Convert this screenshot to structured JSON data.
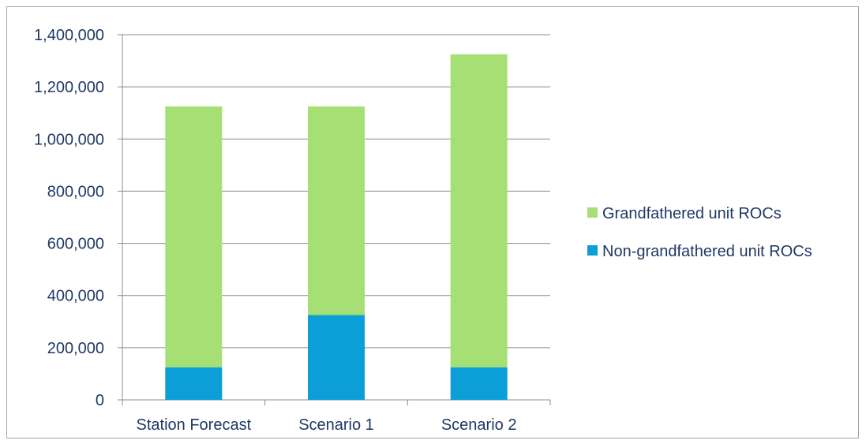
{
  "chart_data": {
    "type": "bar",
    "stacked": true,
    "categories": [
      "Station Forecast",
      "Scenario 1",
      "Scenario 2"
    ],
    "series": [
      {
        "name": "Non-grandfathered unit ROCs",
        "values": [
          125000,
          325000,
          125000
        ],
        "color": "#0b9ed7"
      },
      {
        "name": "Grandfathered unit ROCs",
        "values": [
          1000000,
          800000,
          1200000
        ],
        "color": "#a6e075"
      }
    ],
    "ylim": [
      0,
      1400000
    ],
    "yticks": [
      "0",
      "200,000",
      "400,000",
      "600,000",
      "800,000",
      "1,000,000",
      "1,200,000",
      "1,400,000"
    ],
    "grid": true,
    "legend_position": "right",
    "title": "",
    "xlabel": "",
    "ylabel": ""
  },
  "legend": {
    "items": [
      {
        "label": "Grandfathered unit ROCs",
        "color": "#a6e075"
      },
      {
        "label": "Non-grandfathered unit ROCs",
        "color": "#0b9ed7"
      }
    ]
  }
}
